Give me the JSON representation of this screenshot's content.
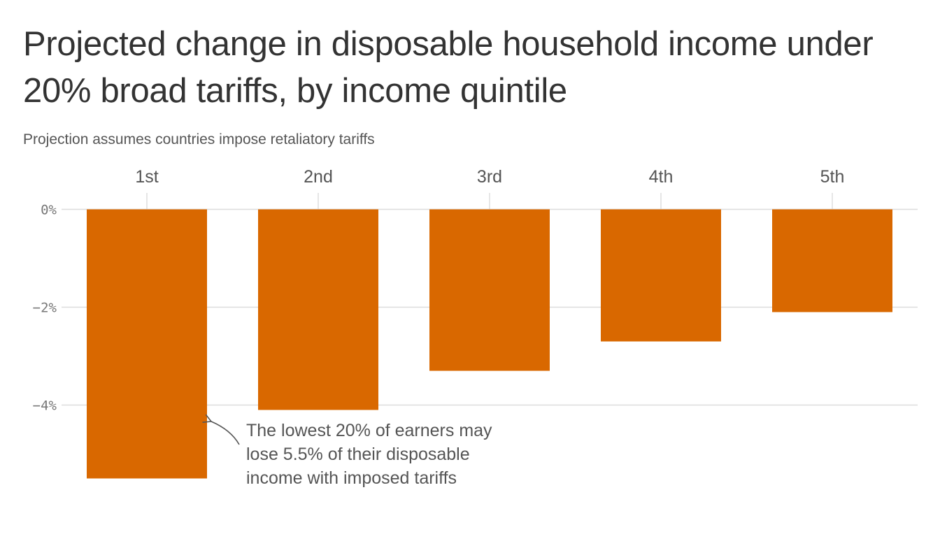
{
  "chart_data": {
    "type": "bar",
    "title": "Projected change in disposable household income under 20% broad tariffs, by income quintile",
    "subtitle": "Projection assumes countries impose retaliatory tariffs",
    "categories": [
      "1st",
      "2nd",
      "3rd",
      "4th",
      "5th"
    ],
    "values": [
      -5.5,
      -4.1,
      -3.3,
      -2.7,
      -2.1
    ],
    "value_unit": "%",
    "yticks": [
      0,
      -2,
      -4
    ],
    "ytick_labels": [
      "0%",
      "−2%",
      "−4%"
    ],
    "ylim": [
      -5.8,
      0
    ],
    "xlabel": "",
    "ylabel": "",
    "category_axis_position": "top",
    "grid": true,
    "bar_color": "#d96800",
    "annotation": {
      "target": "1st",
      "lines": [
        "The lowest 20% of earners may",
        "lose 5.5% of their disposable",
        "income with imposed tariffs"
      ]
    }
  }
}
